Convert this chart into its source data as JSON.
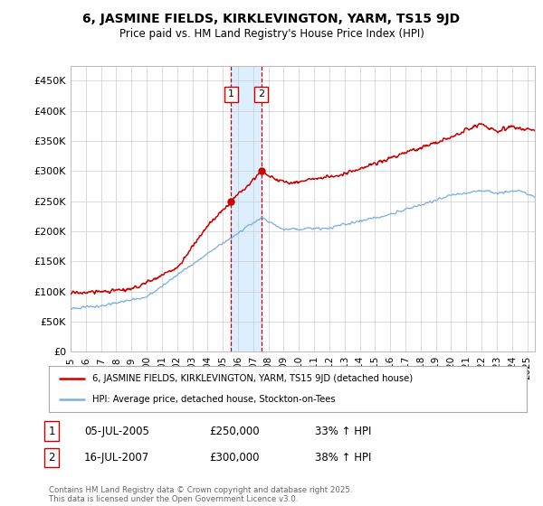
{
  "title": "6, JASMINE FIELDS, KIRKLEVINGTON, YARM, TS15 9JD",
  "subtitle": "Price paid vs. HM Land Registry's House Price Index (HPI)",
  "legend_line1": "6, JASMINE FIELDS, KIRKLEVINGTON, YARM, TS15 9JD (detached house)",
  "legend_line2": "HPI: Average price, detached house, Stockton-on-Tees",
  "transaction1_label": "1",
  "transaction1_date": "05-JUL-2005",
  "transaction1_price": "£250,000",
  "transaction1_hpi": "33% ↑ HPI",
  "transaction2_label": "2",
  "transaction2_date": "16-JUL-2007",
  "transaction2_price": "£300,000",
  "transaction2_hpi": "38% ↑ HPI",
  "footnote": "Contains HM Land Registry data © Crown copyright and database right 2025.\nThis data is licensed under the Open Government Licence v3.0.",
  "red_color": "#cc0000",
  "blue_color": "#7aade0",
  "shading_color": "#ddeeff",
  "background_color": "#ffffff",
  "grid_color": "#cccccc",
  "ylim": [
    0,
    475000
  ],
  "yticks": [
    0,
    50000,
    100000,
    150000,
    200000,
    250000,
    300000,
    350000,
    400000,
    450000
  ],
  "transaction1_x": 2005.54,
  "transaction2_x": 2007.54,
  "shade_x_start": 2005.54,
  "shade_x_end": 2007.54,
  "xlim_start": 1995,
  "xlim_end": 2025.5
}
